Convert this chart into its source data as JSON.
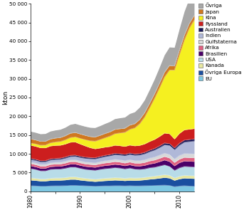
{
  "years": [
    1980,
    1981,
    1982,
    1983,
    1984,
    1985,
    1986,
    1987,
    1988,
    1989,
    1990,
    1991,
    1992,
    1993,
    1994,
    1995,
    1996,
    1997,
    1998,
    1999,
    2000,
    2001,
    2002,
    2003,
    2004,
    2005,
    2006,
    2007,
    2008,
    2009,
    2010,
    2011,
    2012,
    2013
  ],
  "series": {
    "EU": [
      1500,
      1450,
      1380,
      1380,
      1450,
      1480,
      1480,
      1520,
      1600,
      1600,
      1550,
      1480,
      1430,
      1380,
      1420,
      1460,
      1460,
      1500,
      1500,
      1460,
      1500,
      1460,
      1460,
      1500,
      1540,
      1580,
      1620,
      1660,
      1580,
      1250,
      1420,
      1500,
      1420,
      1380
    ],
    "Övriga Europa": [
      1500,
      1450,
      1380,
      1380,
      1450,
      1480,
      1480,
      1520,
      1600,
      1600,
      1450,
      1380,
      1300,
      1240,
      1300,
      1380,
      1440,
      1500,
      1440,
      1380,
      1440,
      1440,
      1500,
      1580,
      1700,
      1780,
      1900,
      2040,
      1960,
      1680,
      1900,
      2040,
      2040,
      2040
    ],
    "Kanada": [
      600,
      580,
      560,
      560,
      590,
      610,
      620,
      635,
      670,
      670,
      650,
      640,
      630,
      630,
      650,
      665,
      670,
      685,
      670,
      655,
      670,
      655,
      645,
      655,
      685,
      710,
      745,
      785,
      745,
      635,
      710,
      745,
      745,
      730
    ],
    "USA": [
      2500,
      2380,
      2160,
      2160,
      2380,
      2380,
      2380,
      2500,
      2600,
      2600,
      2500,
      2380,
      2380,
      2380,
      2500,
      2550,
      2600,
      2660,
      2600,
      2500,
      2600,
      2380,
      2260,
      2260,
      2380,
      2380,
      2500,
      2600,
      2380,
      2040,
      2260,
      2380,
      2380,
      2380
    ],
    "Brasilien": [
      700,
      690,
      680,
      680,
      700,
      715,
      720,
      750,
      790,
      800,
      790,
      780,
      780,
      780,
      800,
      825,
      840,
      865,
      855,
      840,
      865,
      855,
      880,
      935,
      990,
      1070,
      1165,
      1275,
      1300,
      1195,
      1370,
      1440,
      1440,
      1440
    ],
    "Afrika": [
      600,
      590,
      580,
      580,
      600,
      610,
      615,
      635,
      660,
      665,
      665,
      665,
      665,
      670,
      680,
      700,
      715,
      730,
      730,
      730,
      745,
      745,
      765,
      790,
      820,
      850,
      890,
      935,
      935,
      890,
      935,
      975,
      975,
      975
    ],
    "Gulfstaterna": [
      400,
      400,
      410,
      420,
      430,
      440,
      450,
      460,
      475,
      480,
      490,
      500,
      510,
      520,
      535,
      555,
      575,
      595,
      600,
      615,
      630,
      640,
      660,
      690,
      730,
      770,
      820,
      875,
      920,
      895,
      955,
      1000,
      1020,
      1030
    ],
    "Indien": [
      700,
      715,
      730,
      745,
      770,
      785,
      810,
      840,
      880,
      920,
      950,
      975,
      1005,
      1050,
      1090,
      1130,
      1185,
      1255,
      1295,
      1340,
      1395,
      1450,
      1530,
      1615,
      1740,
      1885,
      2060,
      2255,
      2435,
      2530,
      2780,
      3060,
      3265,
      3470
    ],
    "Australien": [
      300,
      295,
      290,
      290,
      300,
      305,
      310,
      315,
      330,
      335,
      335,
      330,
      330,
      330,
      335,
      340,
      350,
      360,
      360,
      360,
      365,
      365,
      375,
      385,
      400,
      420,
      445,
      475,
      495,
      475,
      510,
      535,
      545,
      555
    ],
    "Ryssland": [
      3500,
      3470,
      3440,
      3410,
      3440,
      3450,
      3440,
      3450,
      3500,
      3500,
      3250,
      3000,
      2620,
      2370,
      2250,
      2190,
      2130,
      2150,
      2130,
      2100,
      2130,
      2150,
      2190,
      2250,
      2335,
      2420,
      2520,
      2645,
      2620,
      2370,
      2620,
      2745,
      2745,
      2745
    ],
    "Kina": [
      600,
      640,
      700,
      760,
      840,
      920,
      1000,
      1120,
      1240,
      1360,
      1500,
      1660,
      1840,
      2040,
      2260,
      2500,
      2780,
      3080,
      3400,
      3760,
      4200,
      4800,
      5800,
      7200,
      9000,
      11000,
      13000,
      15000,
      17000,
      18400,
      21000,
      24000,
      27000,
      29000
    ],
    "Japan": [
      1100,
      1055,
      1010,
      990,
      1010,
      1030,
      1045,
      1080,
      1145,
      1175,
      1175,
      1145,
      1120,
      1100,
      1110,
      1130,
      1120,
      1140,
      1120,
      1100,
      1130,
      1100,
      1110,
      1120,
      1145,
      1165,
      1195,
      1230,
      1195,
      1055,
      1175,
      1220,
      1205,
      1195
    ],
    "Övriga": [
      2000,
      2000,
      2000,
      2030,
      2080,
      2120,
      2165,
      2230,
      2330,
      2365,
      2380,
      2395,
      2430,
      2480,
      2545,
      2630,
      2730,
      2830,
      2880,
      2930,
      3045,
      3130,
      3260,
      3430,
      3660,
      3930,
      4245,
      4610,
      4910,
      4960,
      5660,
      6330,
      6660,
      6990
    ]
  },
  "colors": {
    "EU": "#7ec8e3",
    "Övriga Europa": "#1a4fa0",
    "Kanada": "#e8e8a0",
    "USA": "#b8dce8",
    "Brasilien": "#4a0068",
    "Afrika": "#e06080",
    "Gulfstaterna": "#d8d8d8",
    "Indien": "#b0b8d8",
    "Australien": "#181858",
    "Ryssland": "#cc1e1e",
    "Kina": "#f5f020",
    "Japan": "#d07820",
    "Övriga": "#a8a8a8"
  },
  "legend_order": [
    "Övriga",
    "Japan",
    "Kina",
    "Ryssland",
    "Australien",
    "Indien",
    "Gulfstaterna",
    "Afrika",
    "Brasilien",
    "USA",
    "Kanada",
    "Övriga Europa",
    "EU"
  ],
  "ylabel": "kton",
  "ylim": [
    0,
    50000
  ],
  "yticks": [
    0,
    5000,
    10000,
    15000,
    20000,
    25000,
    30000,
    35000,
    40000,
    45000,
    50000
  ],
  "ytick_labels": [
    "0",
    "5 000",
    "10 000",
    "15 000",
    "20 000",
    "25 000",
    "30 000",
    "35 000",
    "40 000",
    "45 000",
    "50 000"
  ],
  "xticks": [
    1980,
    1985,
    1990,
    1995,
    2000,
    2005,
    2010
  ],
  "xtick_labels": [
    "1980",
    "",
    "1990",
    "",
    "2000",
    "",
    "2010"
  ]
}
